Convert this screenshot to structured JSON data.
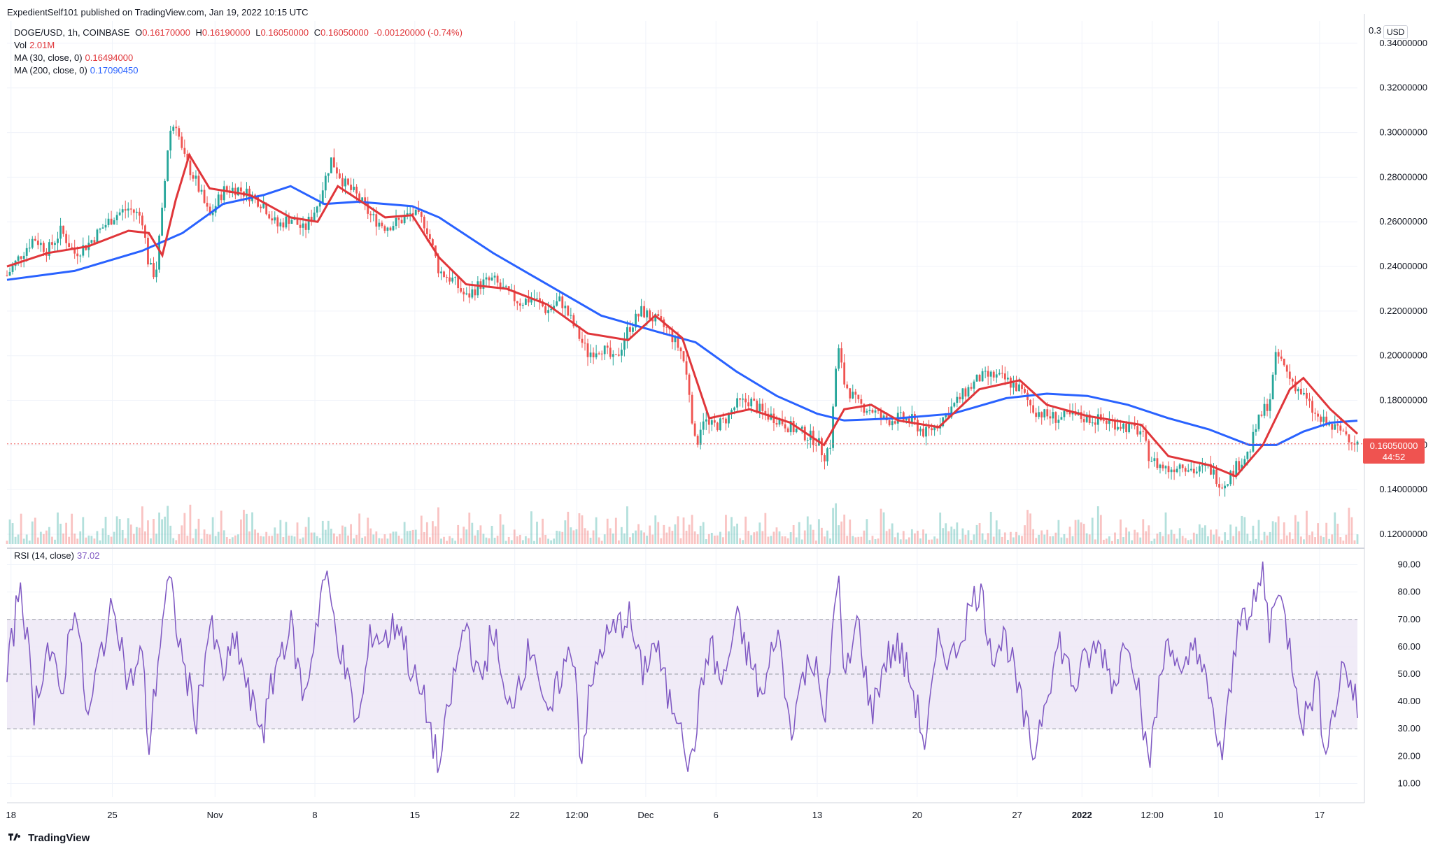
{
  "header": {
    "publisher": "ExpedientSelf101 published on TradingView.com, Jan 19, 2022 10:15 UTC"
  },
  "legend": {
    "symbol": "DOGE/USD, 1h, COINBASE",
    "ohlc": {
      "o_label": "O",
      "o": "0.16170000",
      "h_label": "H",
      "h": "0.16190000",
      "l_label": "L",
      "l": "0.16050000",
      "c_label": "C",
      "c": "0.16050000",
      "change": "-0.00120000 (-0.74%)"
    },
    "vol_label": "Vol",
    "vol": "2.01M",
    "ma30_label": "MA (30, close, 0)",
    "ma30": "0.16494000",
    "ma200_label": "MA (200, close, 0)",
    "ma200": "0.17090450",
    "rsi_label": "RSI (14, close)",
    "rsi": "37.02"
  },
  "currency": "USD",
  "last_price_label": {
    "price": "0.16050000",
    "countdown": "44:52"
  },
  "price_axis_top": "0.3",
  "brand": "TradingView",
  "colors": {
    "up": "#26a69a",
    "down": "#ef5350",
    "ma30": "#e0363a",
    "ma200": "#2962ff",
    "rsi": "#7e57c2",
    "rsi_band": "#ede7f6",
    "price_line": "#ef5350"
  },
  "chart_data": [
    {
      "type": "candlestick",
      "title": "DOGE/USD, 1h, COINBASE",
      "y_axis": {
        "ylim": [
          0.115,
          0.35
        ],
        "ticks": [
          "0.12000000",
          "0.14000000",
          "0.16000000",
          "0.18000000",
          "0.20000000",
          "0.22000000",
          "0.24000000",
          "0.26000000",
          "0.28000000",
          "0.30000000",
          "0.32000000",
          "0.34000000"
        ]
      },
      "x_axis": {
        "ticks": [
          {
            "label": "18",
            "t": 0.003
          },
          {
            "label": "25",
            "t": 0.078
          },
          {
            "label": "Nov",
            "t": 0.154
          },
          {
            "label": "8",
            "t": 0.228
          },
          {
            "label": "15",
            "t": 0.302
          },
          {
            "label": "22",
            "t": 0.376
          },
          {
            "label": "12:00",
            "t": 0.422
          },
          {
            "label": "Dec",
            "t": 0.473
          },
          {
            "label": "6",
            "t": 0.525
          },
          {
            "label": "13",
            "t": 0.6
          },
          {
            "label": "20",
            "t": 0.674
          },
          {
            "label": "27",
            "t": 0.748
          },
          {
            "label": "2022",
            "t": 0.796
          },
          {
            "label": "12:00",
            "t": 0.848
          },
          {
            "label": "10",
            "t": 0.897
          },
          {
            "label": "17",
            "t": 0.972
          }
        ]
      },
      "price_path": [
        [
          0.0,
          0.236
        ],
        [
          0.01,
          0.245
        ],
        [
          0.02,
          0.253
        ],
        [
          0.03,
          0.247
        ],
        [
          0.04,
          0.256
        ],
        [
          0.05,
          0.246
        ],
        [
          0.06,
          0.25
        ],
        [
          0.07,
          0.257
        ],
        [
          0.08,
          0.263
        ],
        [
          0.09,
          0.266
        ],
        [
          0.1,
          0.262
        ],
        [
          0.105,
          0.24
        ],
        [
          0.11,
          0.236
        ],
        [
          0.115,
          0.265
        ],
        [
          0.12,
          0.3
        ],
        [
          0.125,
          0.305
        ],
        [
          0.13,
          0.29
        ],
        [
          0.14,
          0.278
        ],
        [
          0.15,
          0.262
        ],
        [
          0.16,
          0.274
        ],
        [
          0.17,
          0.275
        ],
        [
          0.18,
          0.272
        ],
        [
          0.19,
          0.268
        ],
        [
          0.2,
          0.258
        ],
        [
          0.21,
          0.262
        ],
        [
          0.22,
          0.256
        ],
        [
          0.23,
          0.268
        ],
        [
          0.24,
          0.288
        ],
        [
          0.25,
          0.277
        ],
        [
          0.26,
          0.271
        ],
        [
          0.27,
          0.262
        ],
        [
          0.28,
          0.258
        ],
        [
          0.29,
          0.26
        ],
        [
          0.3,
          0.264
        ],
        [
          0.31,
          0.259
        ],
        [
          0.32,
          0.238
        ],
        [
          0.33,
          0.234
        ],
        [
          0.34,
          0.226
        ],
        [
          0.35,
          0.232
        ],
        [
          0.36,
          0.234
        ],
        [
          0.37,
          0.228
        ],
        [
          0.38,
          0.224
        ],
        [
          0.39,
          0.226
        ],
        [
          0.4,
          0.22
        ],
        [
          0.41,
          0.225
        ],
        [
          0.42,
          0.213
        ],
        [
          0.43,
          0.201
        ],
        [
          0.44,
          0.204
        ],
        [
          0.45,
          0.197
        ],
        [
          0.46,
          0.212
        ],
        [
          0.47,
          0.22
        ],
        [
          0.48,
          0.216
        ],
        [
          0.49,
          0.211
        ],
        [
          0.5,
          0.201
        ],
        [
          0.505,
          0.185
        ],
        [
          0.51,
          0.158
        ],
        [
          0.515,
          0.173
        ],
        [
          0.52,
          0.168
        ],
        [
          0.53,
          0.17
        ],
        [
          0.54,
          0.178
        ],
        [
          0.55,
          0.18
        ],
        [
          0.56,
          0.174
        ],
        [
          0.57,
          0.172
        ],
        [
          0.58,
          0.168
        ],
        [
          0.59,
          0.165
        ],
        [
          0.6,
          0.162
        ],
        [
          0.605,
          0.155
        ],
        [
          0.61,
          0.161
        ],
        [
          0.615,
          0.205
        ],
        [
          0.62,
          0.188
        ],
        [
          0.63,
          0.178
        ],
        [
          0.64,
          0.176
        ],
        [
          0.65,
          0.171
        ],
        [
          0.66,
          0.172
        ],
        [
          0.67,
          0.171
        ],
        [
          0.68,
          0.165
        ],
        [
          0.69,
          0.17
        ],
        [
          0.7,
          0.177
        ],
        [
          0.71,
          0.184
        ],
        [
          0.72,
          0.19
        ],
        [
          0.73,
          0.191
        ],
        [
          0.74,
          0.189
        ],
        [
          0.75,
          0.185
        ],
        [
          0.76,
          0.176
        ],
        [
          0.77,
          0.173
        ],
        [
          0.78,
          0.172
        ],
        [
          0.79,
          0.173
        ],
        [
          0.8,
          0.172
        ],
        [
          0.81,
          0.171
        ],
        [
          0.82,
          0.17
        ],
        [
          0.83,
          0.168
        ],
        [
          0.84,
          0.166
        ],
        [
          0.845,
          0.156
        ],
        [
          0.85,
          0.152
        ],
        [
          0.86,
          0.149
        ],
        [
          0.87,
          0.152
        ],
        [
          0.88,
          0.148
        ],
        [
          0.89,
          0.15
        ],
        [
          0.9,
          0.142
        ],
        [
          0.91,
          0.15
        ],
        [
          0.92,
          0.157
        ],
        [
          0.925,
          0.168
        ],
        [
          0.93,
          0.175
        ],
        [
          0.935,
          0.18
        ],
        [
          0.94,
          0.201
        ],
        [
          0.945,
          0.196
        ],
        [
          0.95,
          0.19
        ],
        [
          0.96,
          0.182
        ],
        [
          0.97,
          0.172
        ],
        [
          0.98,
          0.168
        ],
        [
          0.99,
          0.166
        ],
        [
          1.0,
          0.1605
        ]
      ],
      "ma30_path": [
        [
          0.0,
          0.24
        ],
        [
          0.03,
          0.246
        ],
        [
          0.06,
          0.249
        ],
        [
          0.09,
          0.256
        ],
        [
          0.105,
          0.255
        ],
        [
          0.115,
          0.245
        ],
        [
          0.125,
          0.27
        ],
        [
          0.135,
          0.29
        ],
        [
          0.15,
          0.275
        ],
        [
          0.18,
          0.272
        ],
        [
          0.21,
          0.262
        ],
        [
          0.23,
          0.26
        ],
        [
          0.245,
          0.276
        ],
        [
          0.26,
          0.27
        ],
        [
          0.28,
          0.262
        ],
        [
          0.3,
          0.263
        ],
        [
          0.32,
          0.244
        ],
        [
          0.34,
          0.232
        ],
        [
          0.37,
          0.23
        ],
        [
          0.4,
          0.223
        ],
        [
          0.43,
          0.21
        ],
        [
          0.46,
          0.207
        ],
        [
          0.48,
          0.218
        ],
        [
          0.5,
          0.208
        ],
        [
          0.51,
          0.19
        ],
        [
          0.52,
          0.172
        ],
        [
          0.55,
          0.176
        ],
        [
          0.58,
          0.17
        ],
        [
          0.605,
          0.16
        ],
        [
          0.62,
          0.176
        ],
        [
          0.64,
          0.178
        ],
        [
          0.66,
          0.171
        ],
        [
          0.69,
          0.168
        ],
        [
          0.72,
          0.185
        ],
        [
          0.75,
          0.189
        ],
        [
          0.77,
          0.178
        ],
        [
          0.8,
          0.173
        ],
        [
          0.84,
          0.169
        ],
        [
          0.86,
          0.155
        ],
        [
          0.89,
          0.151
        ],
        [
          0.91,
          0.146
        ],
        [
          0.93,
          0.16
        ],
        [
          0.95,
          0.185
        ],
        [
          0.96,
          0.19
        ],
        [
          0.98,
          0.176
        ],
        [
          1.0,
          0.165
        ]
      ],
      "ma200_path": [
        [
          0.0,
          0.234
        ],
        [
          0.05,
          0.238
        ],
        [
          0.1,
          0.247
        ],
        [
          0.13,
          0.255
        ],
        [
          0.16,
          0.268
        ],
        [
          0.19,
          0.272
        ],
        [
          0.21,
          0.276
        ],
        [
          0.235,
          0.268
        ],
        [
          0.26,
          0.269
        ],
        [
          0.3,
          0.267
        ],
        [
          0.32,
          0.262
        ],
        [
          0.36,
          0.246
        ],
        [
          0.4,
          0.232
        ],
        [
          0.44,
          0.218
        ],
        [
          0.48,
          0.211
        ],
        [
          0.51,
          0.206
        ],
        [
          0.54,
          0.193
        ],
        [
          0.57,
          0.182
        ],
        [
          0.6,
          0.174
        ],
        [
          0.62,
          0.171
        ],
        [
          0.66,
          0.172
        ],
        [
          0.7,
          0.174
        ],
        [
          0.74,
          0.181
        ],
        [
          0.77,
          0.183
        ],
        [
          0.8,
          0.182
        ],
        [
          0.83,
          0.178
        ],
        [
          0.86,
          0.172
        ],
        [
          0.89,
          0.167
        ],
        [
          0.92,
          0.16
        ],
        [
          0.94,
          0.16
        ],
        [
          0.96,
          0.166
        ],
        [
          0.98,
          0.17
        ],
        [
          1.0,
          0.1709
        ]
      ],
      "last_price": 0.1605
    },
    {
      "type": "line",
      "title": "RSI (14, close)",
      "y_axis": {
        "ylim": [
          5,
          95
        ],
        "ticks": [
          "10.00",
          "20.00",
          "30.00",
          "40.00",
          "50.00",
          "60.00",
          "70.00",
          "80.00",
          "90.00"
        ]
      },
      "band": [
        30,
        70
      ],
      "midline": 50,
      "rsi_path": [
        [
          0.0,
          48
        ],
        [
          0.01,
          85
        ],
        [
          0.02,
          38
        ],
        [
          0.03,
          60
        ],
        [
          0.04,
          42
        ],
        [
          0.05,
          78
        ],
        [
          0.06,
          32
        ],
        [
          0.07,
          60
        ],
        [
          0.08,
          76
        ],
        [
          0.09,
          45
        ],
        [
          0.1,
          58
        ],
        [
          0.105,
          22
        ],
        [
          0.115,
          70
        ],
        [
          0.12,
          84
        ],
        [
          0.13,
          55
        ],
        [
          0.14,
          34
        ],
        [
          0.15,
          68
        ],
        [
          0.16,
          50
        ],
        [
          0.17,
          62
        ],
        [
          0.18,
          40
        ],
        [
          0.19,
          30
        ],
        [
          0.2,
          55
        ],
        [
          0.21,
          68
        ],
        [
          0.22,
          40
        ],
        [
          0.235,
          87
        ],
        [
          0.25,
          52
        ],
        [
          0.26,
          30
        ],
        [
          0.27,
          66
        ],
        [
          0.28,
          62
        ],
        [
          0.29,
          70
        ],
        [
          0.3,
          50
        ],
        [
          0.31,
          38
        ],
        [
          0.32,
          15
        ],
        [
          0.33,
          46
        ],
        [
          0.34,
          70
        ],
        [
          0.35,
          45
        ],
        [
          0.36,
          68
        ],
        [
          0.37,
          35
        ],
        [
          0.38,
          50
        ],
        [
          0.39,
          62
        ],
        [
          0.4,
          30
        ],
        [
          0.41,
          50
        ],
        [
          0.42,
          60
        ],
        [
          0.425,
          17
        ],
        [
          0.43,
          38
        ],
        [
          0.44,
          60
        ],
        [
          0.46,
          72
        ],
        [
          0.47,
          50
        ],
        [
          0.48,
          62
        ],
        [
          0.49,
          40
        ],
        [
          0.5,
          35
        ],
        [
          0.505,
          12
        ],
        [
          0.51,
          30
        ],
        [
          0.52,
          62
        ],
        [
          0.53,
          45
        ],
        [
          0.54,
          70
        ],
        [
          0.55,
          55
        ],
        [
          0.56,
          40
        ],
        [
          0.57,
          68
        ],
        [
          0.58,
          30
        ],
        [
          0.59,
          50
        ],
        [
          0.6,
          58
        ],
        [
          0.605,
          25
        ],
        [
          0.615,
          90
        ],
        [
          0.62,
          45
        ],
        [
          0.63,
          70
        ],
        [
          0.64,
          35
        ],
        [
          0.65,
          55
        ],
        [
          0.66,
          60
        ],
        [
          0.67,
          46
        ],
        [
          0.68,
          24
        ],
        [
          0.69,
          62
        ],
        [
          0.7,
          55
        ],
        [
          0.71,
          70
        ],
        [
          0.72,
          82
        ],
        [
          0.73,
          58
        ],
        [
          0.74,
          64
        ],
        [
          0.75,
          40
        ],
        [
          0.76,
          20
        ],
        [
          0.77,
          45
        ],
        [
          0.78,
          62
        ],
        [
          0.79,
          45
        ],
        [
          0.8,
          56
        ],
        [
          0.81,
          60
        ],
        [
          0.82,
          46
        ],
        [
          0.83,
          66
        ],
        [
          0.84,
          40
        ],
        [
          0.845,
          14
        ],
        [
          0.85,
          34
        ],
        [
          0.86,
          66
        ],
        [
          0.87,
          45
        ],
        [
          0.88,
          64
        ],
        [
          0.89,
          40
        ],
        [
          0.9,
          20
        ],
        [
          0.91,
          60
        ],
        [
          0.915,
          80
        ],
        [
          0.92,
          68
        ],
        [
          0.93,
          87
        ],
        [
          0.935,
          65
        ],
        [
          0.94,
          84
        ],
        [
          0.95,
          60
        ],
        [
          0.96,
          32
        ],
        [
          0.97,
          48
        ],
        [
          0.975,
          26
        ],
        [
          0.98,
          30
        ],
        [
          0.99,
          55
        ],
        [
          1.0,
          37
        ]
      ]
    }
  ]
}
